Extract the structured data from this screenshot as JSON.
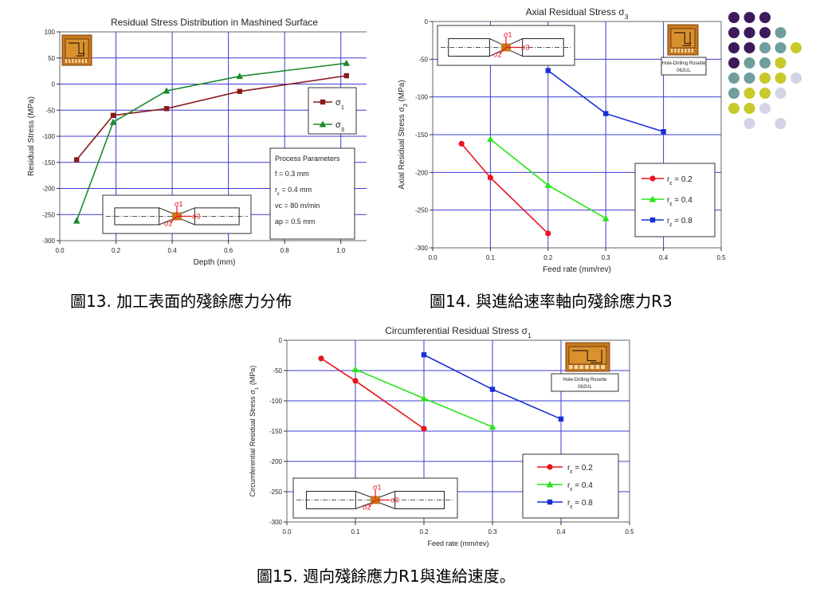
{
  "captions": {
    "fig13": "圖13. 加工表面的殘餘應力分佈",
    "fig14": "圖14. 與進給速率軸向殘餘應力R3",
    "fig15": "圖15. 週向殘餘應力R1與進給速度。"
  },
  "colors": {
    "s1_line": "#8b1a1a",
    "s3_line": "#1a8a2a",
    "red": "#e8141e",
    "green": "#27e41a",
    "blue": "#1a2fd8",
    "grid": "#3c3ccf",
    "dots": [
      "#3d1a5a",
      "#6f9e9c",
      "#c9c92a",
      "#d4d4e6"
    ]
  },
  "chart_data": [
    {
      "type": "line",
      "title": "Residual Stress Distribution in Mashined Surface",
      "xlabel": "Depth (mm)",
      "ylabel": "Residual Stress (MPa)",
      "xlim": [
        0.0,
        1.1
      ],
      "ylim": [
        -300,
        100
      ],
      "xticks": [
        "0.0",
        "0.2",
        "0.4",
        "0.6",
        "0.8",
        "1.0"
      ],
      "yticks": [
        "100",
        "50",
        "0",
        "-50",
        "-100",
        "-150",
        "-200",
        "-250",
        "-300"
      ],
      "grid": true,
      "legend_position": "right",
      "series": [
        {
          "name": "σ1",
          "marker": "square",
          "x": [
            0.06,
            0.19,
            0.38,
            0.64,
            1.02
          ],
          "y": [
            -145,
            -60,
            -47,
            -14,
            16
          ]
        },
        {
          "name": "σ3",
          "marker": "triangle",
          "x": [
            0.06,
            0.19,
            0.38,
            0.64,
            1.02
          ],
          "y": [
            -262,
            -73,
            -13,
            15,
            40
          ]
        }
      ],
      "annotation": {
        "heading": "Process Parameters",
        "lines": [
          "f  = 0.3 mm",
          "rε = 0.4 mm",
          "vc = 80 m/min",
          "ap = 0.5 mm"
        ]
      }
    },
    {
      "type": "line",
      "title": "Axial Residual Stress σ3",
      "xlabel": "Feed rate (mm/rev)",
      "ylabel": "Axial Residual Stress σ3 (MPa)",
      "xlim": [
        0.0,
        0.5
      ],
      "ylim": [
        -300,
        0
      ],
      "xticks": [
        "0.0",
        "0.1",
        "0.2",
        "0.3",
        "0.4",
        "0.5"
      ],
      "yticks": [
        "0",
        "-50",
        "-100",
        "-150",
        "-200",
        "-250",
        "-300"
      ],
      "grid": true,
      "legend_position": "bottom-right",
      "series": [
        {
          "name": "rε = 0.2",
          "marker": "circle",
          "x": [
            0.05,
            0.1,
            0.2
          ],
          "y": [
            -162,
            -207,
            -281
          ]
        },
        {
          "name": "rε = 0.4",
          "marker": "triangle",
          "x": [
            0.1,
            0.2,
            0.3
          ],
          "y": [
            -156,
            -217,
            -261
          ]
        },
        {
          "name": "rε = 0.8",
          "marker": "square",
          "x": [
            0.2,
            0.3,
            0.4
          ],
          "y": [
            -65,
            -122,
            -146
          ]
        }
      ],
      "annotation": {
        "lines": [
          "Hole-Drilling Rosette",
          "062UL"
        ]
      }
    },
    {
      "type": "line",
      "title": "Circumferential Residual Stress σ1",
      "xlabel": "Feed rate (mm/rev)",
      "ylabel": "Circumferential Residual Stress σ1 (MPa)",
      "xlim": [
        0.0,
        0.5
      ],
      "ylim": [
        -300,
        0
      ],
      "xticks": [
        "0.0",
        "0.1",
        "0.2",
        "0.3",
        "0.4",
        "0.5"
      ],
      "yticks": [
        "0",
        "-50",
        "-100",
        "-150",
        "-200",
        "-250",
        "-300"
      ],
      "grid": true,
      "legend_position": "bottom-right",
      "series": [
        {
          "name": "rε = 0.2",
          "marker": "circle",
          "x": [
            0.05,
            0.1,
            0.2
          ],
          "y": [
            -30,
            -67,
            -146
          ]
        },
        {
          "name": "rε = 0.4",
          "marker": "triangle",
          "x": [
            0.1,
            0.2,
            0.3
          ],
          "y": [
            -48,
            -96,
            -143
          ]
        },
        {
          "name": "rε = 0.8",
          "marker": "square",
          "x": [
            0.2,
            0.3,
            0.4
          ],
          "y": [
            -24,
            -81,
            -130
          ]
        }
      ],
      "annotation": {
        "lines": [
          "Hole-Drilling Rosette",
          "062UL"
        ]
      }
    }
  ]
}
